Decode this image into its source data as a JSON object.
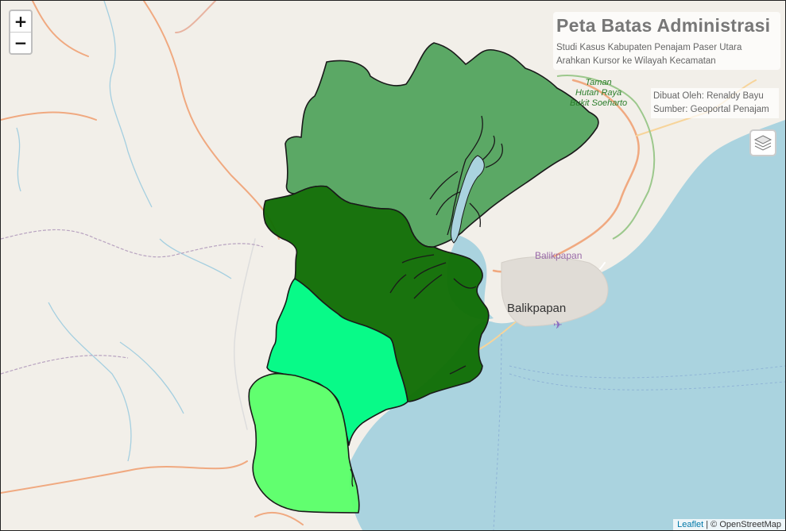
{
  "map": {
    "title": "Peta Batas Administrasi",
    "subtitle_line1": "Studi Kasus Kabupaten Penajam Paser Utara",
    "subtitle_line2": "Arahkan Kursor ke Wilayah Kecamatan",
    "credit_line1": "Dibuat Oleh: Renaldy Bayu",
    "credit_line2": "Sumber: Geoportal Penajam"
  },
  "zoom": {
    "in_label": "+",
    "out_label": "−"
  },
  "labels": {
    "park": [
      "Taman",
      "Hutan Raya",
      "Bukit Soeharto"
    ],
    "city_small": "Balikpapan",
    "city": "Balikpapan"
  },
  "attribution": {
    "leaflet": "Leaflet",
    "separator": " | © ",
    "osm": "OpenStreetMap"
  },
  "colors": {
    "sea": "#aad3df",
    "land": "#f2efe9",
    "district_north": "#52a35e",
    "district_central": "#126e06",
    "district_southeast": "#00fa84",
    "district_south": "#5cff6a",
    "outline": "#1a1a1a"
  },
  "icons": {
    "layers": "layers-icon"
  }
}
